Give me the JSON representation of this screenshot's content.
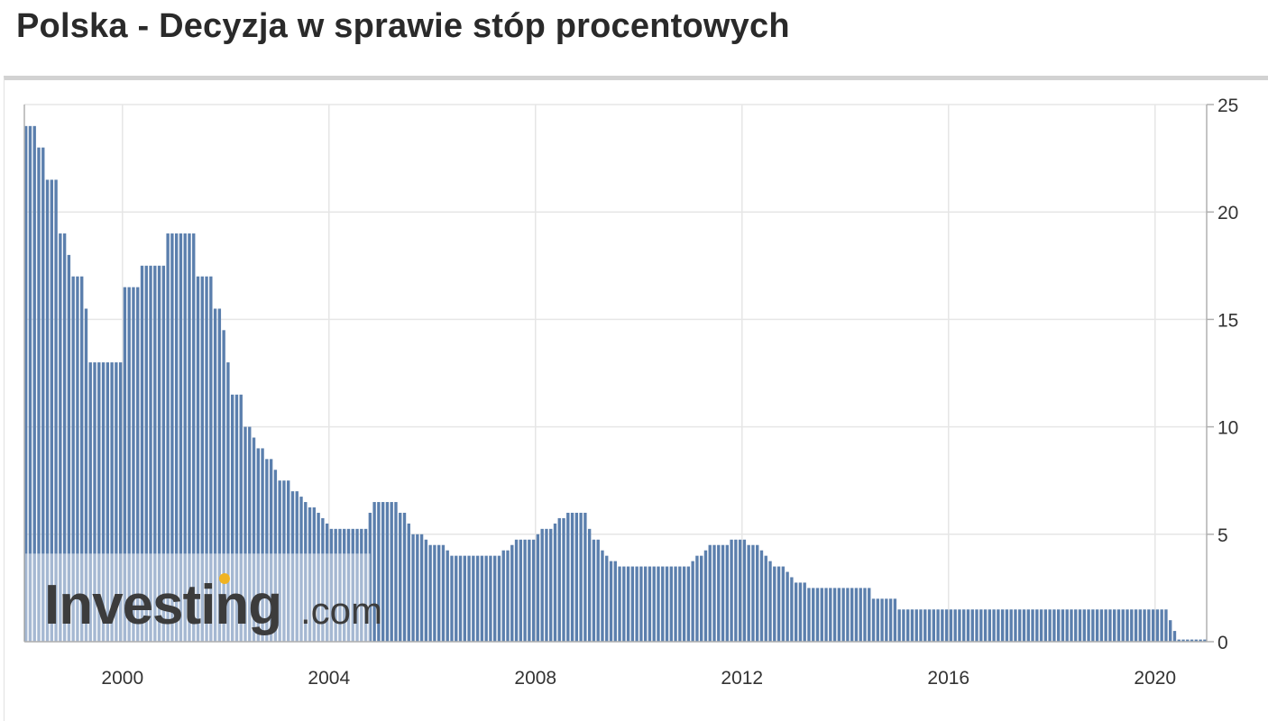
{
  "page": {
    "title": "Polska - Decyzja w sprawie stóp procentowych"
  },
  "colors": {
    "bar": "#5b7fad",
    "bar_edge": "#ffffff",
    "grid": "#e6e6e6",
    "axis": "#b0b0b0",
    "watermark_bg": "#ffffff",
    "watermark_text": "#3c3c3c",
    "watermark_dot": "#f0b323"
  },
  "watermark": {
    "brand": "Investing",
    "suffix": ".com"
  },
  "chart_data": {
    "type": "bar",
    "title": "Polska - Decyzja w sprawie stóp procentowych",
    "xlabel": "",
    "ylabel": "",
    "x_ticks": [
      "2000",
      "2004",
      "2008",
      "2012",
      "2016",
      "2020"
    ],
    "x_tick_years": [
      2000,
      2004,
      2008,
      2012,
      2016,
      2020
    ],
    "y_ticks": [
      0,
      5,
      10,
      15,
      20,
      25
    ],
    "ylim": [
      0,
      25
    ],
    "xlim": [
      1998.1,
      2021.0
    ],
    "y_axis_side": "right",
    "grid": true,
    "steps": [
      [
        1998.1,
        24
      ],
      [
        1998.3,
        23
      ],
      [
        1998.5,
        21.5
      ],
      [
        1998.7,
        19
      ],
      [
        1998.9,
        18
      ],
      [
        1999.0,
        17
      ],
      [
        1999.2,
        15.5
      ],
      [
        1999.3,
        13
      ],
      [
        2000.0,
        16.5
      ],
      [
        2000.3,
        17.5
      ],
      [
        2000.8,
        19
      ],
      [
        2001.4,
        17
      ],
      [
        2001.7,
        15.5
      ],
      [
        2001.9,
        14.5
      ],
      [
        2002.0,
        13
      ],
      [
        2002.1,
        11.5
      ],
      [
        2002.3,
        10
      ],
      [
        2002.5,
        9.5
      ],
      [
        2002.6,
        9
      ],
      [
        2002.7,
        8.5
      ],
      [
        2002.9,
        8
      ],
      [
        2003.0,
        7.5
      ],
      [
        2003.2,
        7
      ],
      [
        2003.4,
        6.75
      ],
      [
        2003.5,
        6.5
      ],
      [
        2003.6,
        6.25
      ],
      [
        2003.7,
        6
      ],
      [
        2003.8,
        5.75
      ],
      [
        2003.9,
        5.5
      ],
      [
        2004.0,
        5.25
      ],
      [
        2004.7,
        6
      ],
      [
        2004.8,
        6.5
      ],
      [
        2005.3,
        6
      ],
      [
        2005.5,
        5.5
      ],
      [
        2005.6,
        5
      ],
      [
        2005.8,
        4.75
      ],
      [
        2005.9,
        4.5
      ],
      [
        2006.2,
        4.25
      ],
      [
        2006.3,
        4
      ],
      [
        2007.3,
        4.25
      ],
      [
        2007.5,
        4.5
      ],
      [
        2007.6,
        4.75
      ],
      [
        2008.0,
        5
      ],
      [
        2008.1,
        5.25
      ],
      [
        2008.3,
        5.5
      ],
      [
        2008.4,
        5.75
      ],
      [
        2008.6,
        6
      ],
      [
        2009.0,
        5.25
      ],
      [
        2009.1,
        4.75
      ],
      [
        2009.2,
        4.25
      ],
      [
        2009.3,
        4
      ],
      [
        2009.4,
        3.75
      ],
      [
        2009.6,
        3.5
      ],
      [
        2011.0,
        3.75
      ],
      [
        2011.1,
        4
      ],
      [
        2011.2,
        4.25
      ],
      [
        2011.3,
        4.5
      ],
      [
        2011.7,
        4.75
      ],
      [
        2012.1,
        4.5
      ],
      [
        2012.3,
        4.25
      ],
      [
        2012.4,
        4
      ],
      [
        2012.5,
        3.75
      ],
      [
        2012.6,
        3.5
      ],
      [
        2012.8,
        3.25
      ],
      [
        2012.9,
        3
      ],
      [
        2013.0,
        2.75
      ],
      [
        2013.2,
        2.5
      ],
      [
        2014.5,
        2
      ],
      [
        2015.0,
        1.5
      ],
      [
        2020.2,
        1
      ],
      [
        2020.3,
        0.5
      ],
      [
        2020.4,
        0.1
      ]
    ]
  }
}
